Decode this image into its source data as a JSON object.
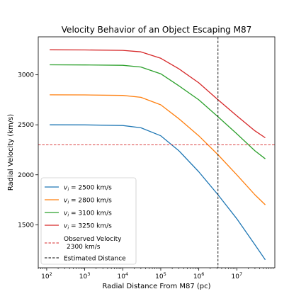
{
  "chart_data": {
    "type": "line",
    "title": "Velocity Behavior of an Object Escaping M87",
    "xlabel": "Radial Distance From M87 (pc)",
    "ylabel": "Radial Velocity (km/s)",
    "xscale": "log",
    "xlim": [
      60,
      100000000
    ],
    "ylim": [
      1070,
      3380
    ],
    "x_ticks": [
      {
        "value": 100,
        "base": "10",
        "exp": "2"
      },
      {
        "value": 1000,
        "base": "10",
        "exp": "3"
      },
      {
        "value": 10000,
        "base": "10",
        "exp": "4"
      },
      {
        "value": 100000,
        "base": "10",
        "exp": "5"
      },
      {
        "value": 1000000,
        "base": "10",
        "exp": "6"
      },
      {
        "value": 10000000,
        "base": "10",
        "exp": "7"
      }
    ],
    "y_ticks": [
      {
        "value": 1500,
        "label": "1500"
      },
      {
        "value": 2000,
        "label": "2000"
      },
      {
        "value": 2500,
        "label": "2500"
      },
      {
        "value": 3000,
        "label": "3000"
      }
    ],
    "grid": false,
    "legend_position": "bottom-left",
    "x": [
      120,
      1000,
      10000,
      30000,
      100000,
      300000,
      1000000,
      3200000,
      10000000,
      30000000,
      56000000
    ],
    "series": [
      {
        "name": "v_i = 2500 km/s",
        "color": "#1f77b4",
        "values": [
          2500,
          2499,
          2493,
          2470,
          2390,
          2240,
          2030,
          1800,
          1560,
          1300,
          1150
        ]
      },
      {
        "name": "v_i = 2800 km/s",
        "color": "#ff7f0e",
        "values": [
          2800,
          2799,
          2794,
          2775,
          2700,
          2560,
          2390,
          2200,
          2000,
          1800,
          1700
        ]
      },
      {
        "name": "v_i = 3100 km/s",
        "color": "#2ca02c",
        "values": [
          3100,
          3099,
          3095,
          3078,
          3010,
          2890,
          2750,
          2580,
          2410,
          2240,
          2160
        ]
      },
      {
        "name": "v_i = 3250 km/s",
        "color": "#d62728",
        "values": [
          3250,
          3249,
          3245,
          3230,
          3165,
          3060,
          2920,
          2750,
          2590,
          2440,
          2370
        ]
      }
    ],
    "reference_lines": [
      {
        "orientation": "horizontal",
        "value": 2300,
        "color": "#d62728",
        "label_line1": "Observed Velocity",
        "label_line2": "2300 km/s"
      },
      {
        "orientation": "vertical",
        "value": 3200000,
        "color": "#000000",
        "label": "Estimated Distance"
      }
    ],
    "legend": {
      "entries": [
        {
          "prefix": "v",
          "sub": "i",
          "suffix": " = 2500 km/s",
          "color": "#1f77b4",
          "style": "solid"
        },
        {
          "prefix": "v",
          "sub": "i",
          "suffix": " = 2800 km/s",
          "color": "#ff7f0e",
          "style": "solid"
        },
        {
          "prefix": "v",
          "sub": "i",
          "suffix": " = 3100 km/s",
          "color": "#2ca02c",
          "style": "solid"
        },
        {
          "prefix": "v",
          "sub": "i",
          "suffix": " = 3250 km/s",
          "color": "#d62728",
          "style": "solid"
        }
      ]
    }
  }
}
